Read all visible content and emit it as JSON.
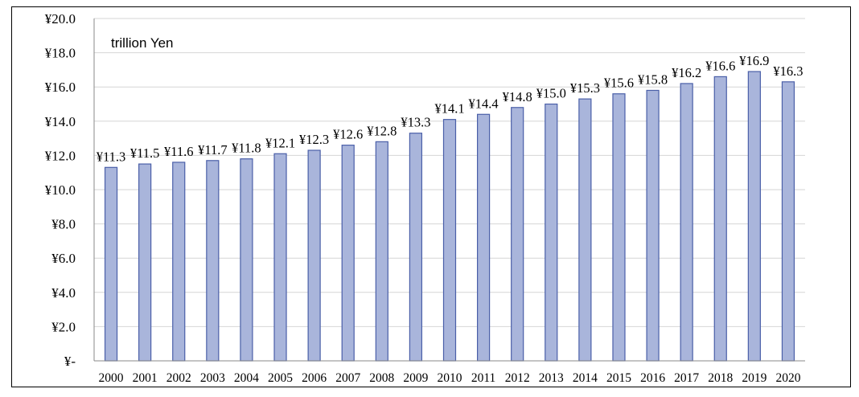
{
  "chart_data": {
    "type": "bar",
    "unit_label": "trillion Yen",
    "categories": [
      "2000",
      "2001",
      "2002",
      "2003",
      "2004",
      "2005",
      "2006",
      "2007",
      "2008",
      "2009",
      "2010",
      "2011",
      "2012",
      "2013",
      "2014",
      "2015",
      "2016",
      "2017",
      "2018",
      "2019",
      "2020"
    ],
    "values": [
      11.3,
      11.5,
      11.6,
      11.7,
      11.8,
      12.1,
      12.3,
      12.6,
      12.8,
      13.3,
      14.1,
      14.4,
      14.8,
      15.0,
      15.3,
      15.6,
      15.8,
      16.2,
      16.6,
      16.9,
      16.3
    ],
    "data_labels": [
      "¥11.3",
      "¥11.5",
      "¥11.6",
      "¥11.7",
      "¥11.8",
      "¥12.1",
      "¥12.3",
      "¥12.6",
      "¥12.8",
      "¥13.3",
      "¥14.1",
      "¥14.4",
      "¥14.8",
      "¥15.0",
      "¥15.3",
      "¥15.6",
      "¥15.8",
      "¥16.2",
      "¥16.6",
      "¥16.9",
      "¥16.3"
    ],
    "ylim": [
      0,
      20
    ],
    "y_ticks": [
      0,
      2,
      4,
      6,
      8,
      10,
      12,
      14,
      16,
      18,
      20
    ],
    "y_tick_labels": [
      "¥-",
      "¥2.0",
      "¥4.0",
      "¥6.0",
      "¥8.0",
      "¥10.0",
      "¥12.0",
      "¥14.0",
      "¥16.0",
      "¥18.0",
      "¥20.0"
    ],
    "grid": true,
    "legend": "none",
    "colors": {
      "bar_fill": "#a9b5db",
      "bar_stroke": "#4a5fa8"
    }
  }
}
